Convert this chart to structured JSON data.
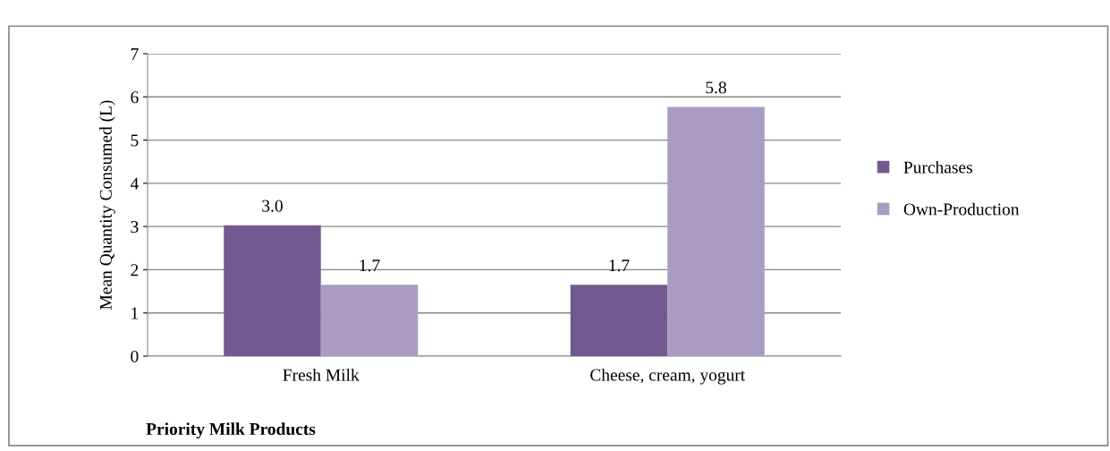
{
  "chart_data": {
    "type": "bar",
    "xlabel": "Priority Milk Products",
    "ylabel": "Mean Quantity Consumed (L)",
    "categories": [
      "Fresh Milk",
      "Cheese, cream, yogurt"
    ],
    "series": [
      {
        "name": "Purchases",
        "color": "#725990",
        "values": [
          3.03,
          1.65
        ],
        "value_labels": [
          "3.0",
          "1.7"
        ]
      },
      {
        "name": "Own-Production",
        "color": "#a99bc1",
        "values": [
          1.65,
          5.77
        ],
        "value_labels": [
          "1.7",
          "5.8"
        ]
      }
    ],
    "ylim": [
      0,
      7
    ],
    "yticks": [
      0,
      1,
      2,
      3,
      4,
      5,
      6,
      7
    ],
    "grid": "y",
    "legend": "right"
  }
}
